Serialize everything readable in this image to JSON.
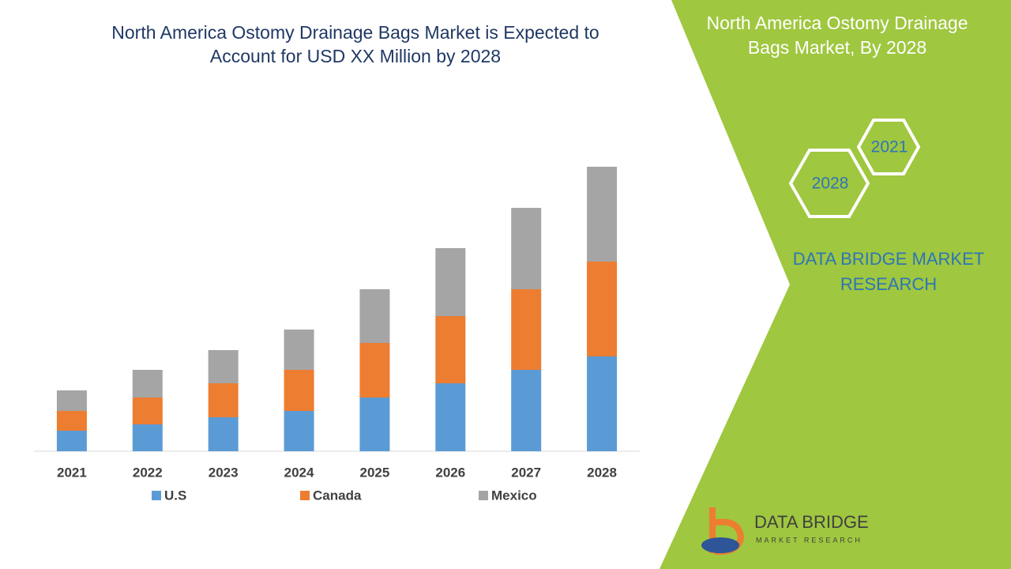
{
  "chart_data": {
    "type": "stacked-bar",
    "title": "North America Ostomy Drainage Bags Market is Expected to Account for USD XX Million by 2028",
    "categories": [
      "2021",
      "2022",
      "2023",
      "2024",
      "2025",
      "2026",
      "2027",
      "2028"
    ],
    "series": [
      {
        "name": "U.S",
        "color": "#5b9bd5",
        "values": [
          26,
          34,
          43,
          51,
          68,
          86,
          103,
          120
        ]
      },
      {
        "name": "Canada",
        "color": "#ed7d31",
        "values": [
          25,
          34,
          43,
          52,
          69,
          85,
          102,
          120
        ]
      },
      {
        "name": "Mexico",
        "color": "#a5a5a5",
        "values": [
          26,
          35,
          42,
          51,
          68,
          86,
          103,
          120
        ]
      }
    ]
  },
  "panel": {
    "title": "North America Ostomy Drainage Bags Market, By 2028",
    "hexagons": [
      "2021",
      "2028"
    ],
    "brand": "DATA BRIDGE MARKET RESEARCH",
    "logo_name": "DATA BRIDGE",
    "logo_tagline": "MARKET RESEARCH"
  }
}
